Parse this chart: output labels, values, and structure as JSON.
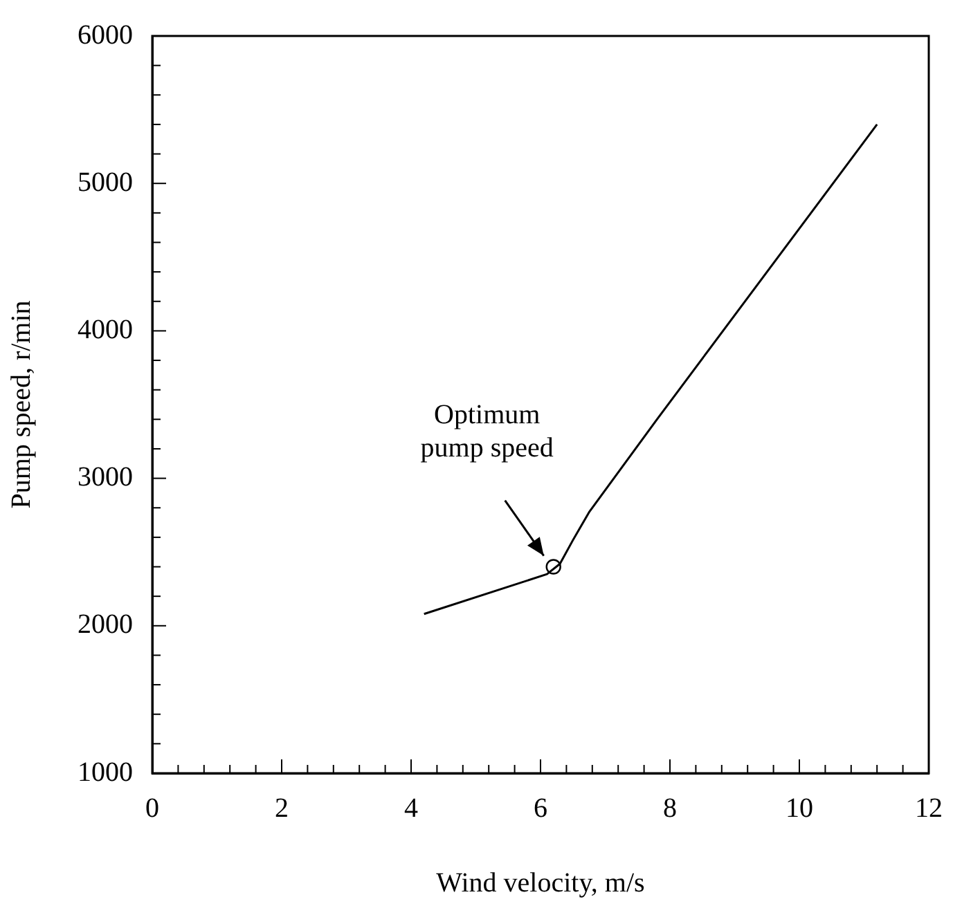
{
  "chart_data": {
    "type": "line",
    "xlabel": "Wind velocity, m/s",
    "ylabel": "Pump speed, r/min",
    "xlim": [
      0,
      12
    ],
    "ylim": [
      1000,
      6000
    ],
    "xticks": [
      0,
      {
        "value": 0.4,
        "label": null
      },
      {
        "value": 0.8,
        "label": null
      },
      {
        "value": 1.2,
        "label": null
      },
      {
        "value": 1.6,
        "label": null
      },
      2,
      {
        "value": 2.4,
        "label": null
      },
      {
        "value": 2.8,
        "label": null
      },
      {
        "value": 3.2,
        "label": null
      },
      {
        "value": 3.6,
        "label": null
      },
      4,
      {
        "value": 4.4,
        "label": null
      },
      {
        "value": 4.8,
        "label": null
      },
      {
        "value": 5.2,
        "label": null
      },
      {
        "value": 5.6,
        "label": null
      },
      6,
      {
        "value": 6.4,
        "label": null
      },
      {
        "value": 6.8,
        "label": null
      },
      {
        "value": 7.2,
        "label": null
      },
      {
        "value": 7.6,
        "label": null
      },
      8,
      {
        "value": 8.4,
        "label": null
      },
      {
        "value": 8.8,
        "label": null
      },
      {
        "value": 9.2,
        "label": null
      },
      {
        "value": 9.6,
        "label": null
      },
      10,
      {
        "value": 10.4,
        "label": null
      },
      {
        "value": 10.8,
        "label": null
      },
      {
        "value": 11.2,
        "label": null
      },
      {
        "value": 11.6,
        "label": null
      },
      12
    ],
    "yticks": [
      1000,
      {
        "value": 1200,
        "label": null
      },
      {
        "value": 1400,
        "label": null
      },
      {
        "value": 1600,
        "label": null
      },
      {
        "value": 1800,
        "label": null
      },
      2000,
      {
        "value": 2200,
        "label": null
      },
      {
        "value": 2400,
        "label": null
      },
      {
        "value": 2600,
        "label": null
      },
      {
        "value": 2800,
        "label": null
      },
      3000,
      {
        "value": 3200,
        "label": null
      },
      {
        "value": 3400,
        "label": null
      },
      {
        "value": 3600,
        "label": null
      },
      {
        "value": 3800,
        "label": null
      },
      4000,
      {
        "value": 4200,
        "label": null
      },
      {
        "value": 4400,
        "label": null
      },
      {
        "value": 4600,
        "label": null
      },
      {
        "value": 4800,
        "label": null
      },
      5000,
      {
        "value": 5200,
        "label": null
      },
      {
        "value": 5400,
        "label": null
      },
      {
        "value": 5600,
        "label": null
      },
      {
        "value": 5800,
        "label": null
      },
      6000
    ],
    "grid": false,
    "legend": false,
    "marker": "none",
    "line_style": "solid",
    "series": [
      {
        "color": "#000000",
        "x": [
          4.2,
          6.1,
          6.3,
          6.5,
          6.75,
          7.8,
          11.2
        ],
        "values": [
          2080,
          2350,
          2420,
          2580,
          2770,
          3400,
          5400
        ]
      },
      {
        "type": "scatter",
        "marker": "circle",
        "color": "#000000",
        "x": [
          6.2
        ],
        "values": [
          2400
        ]
      }
    ],
    "annotations": [
      "Optimum pump speed"
    ]
  }
}
